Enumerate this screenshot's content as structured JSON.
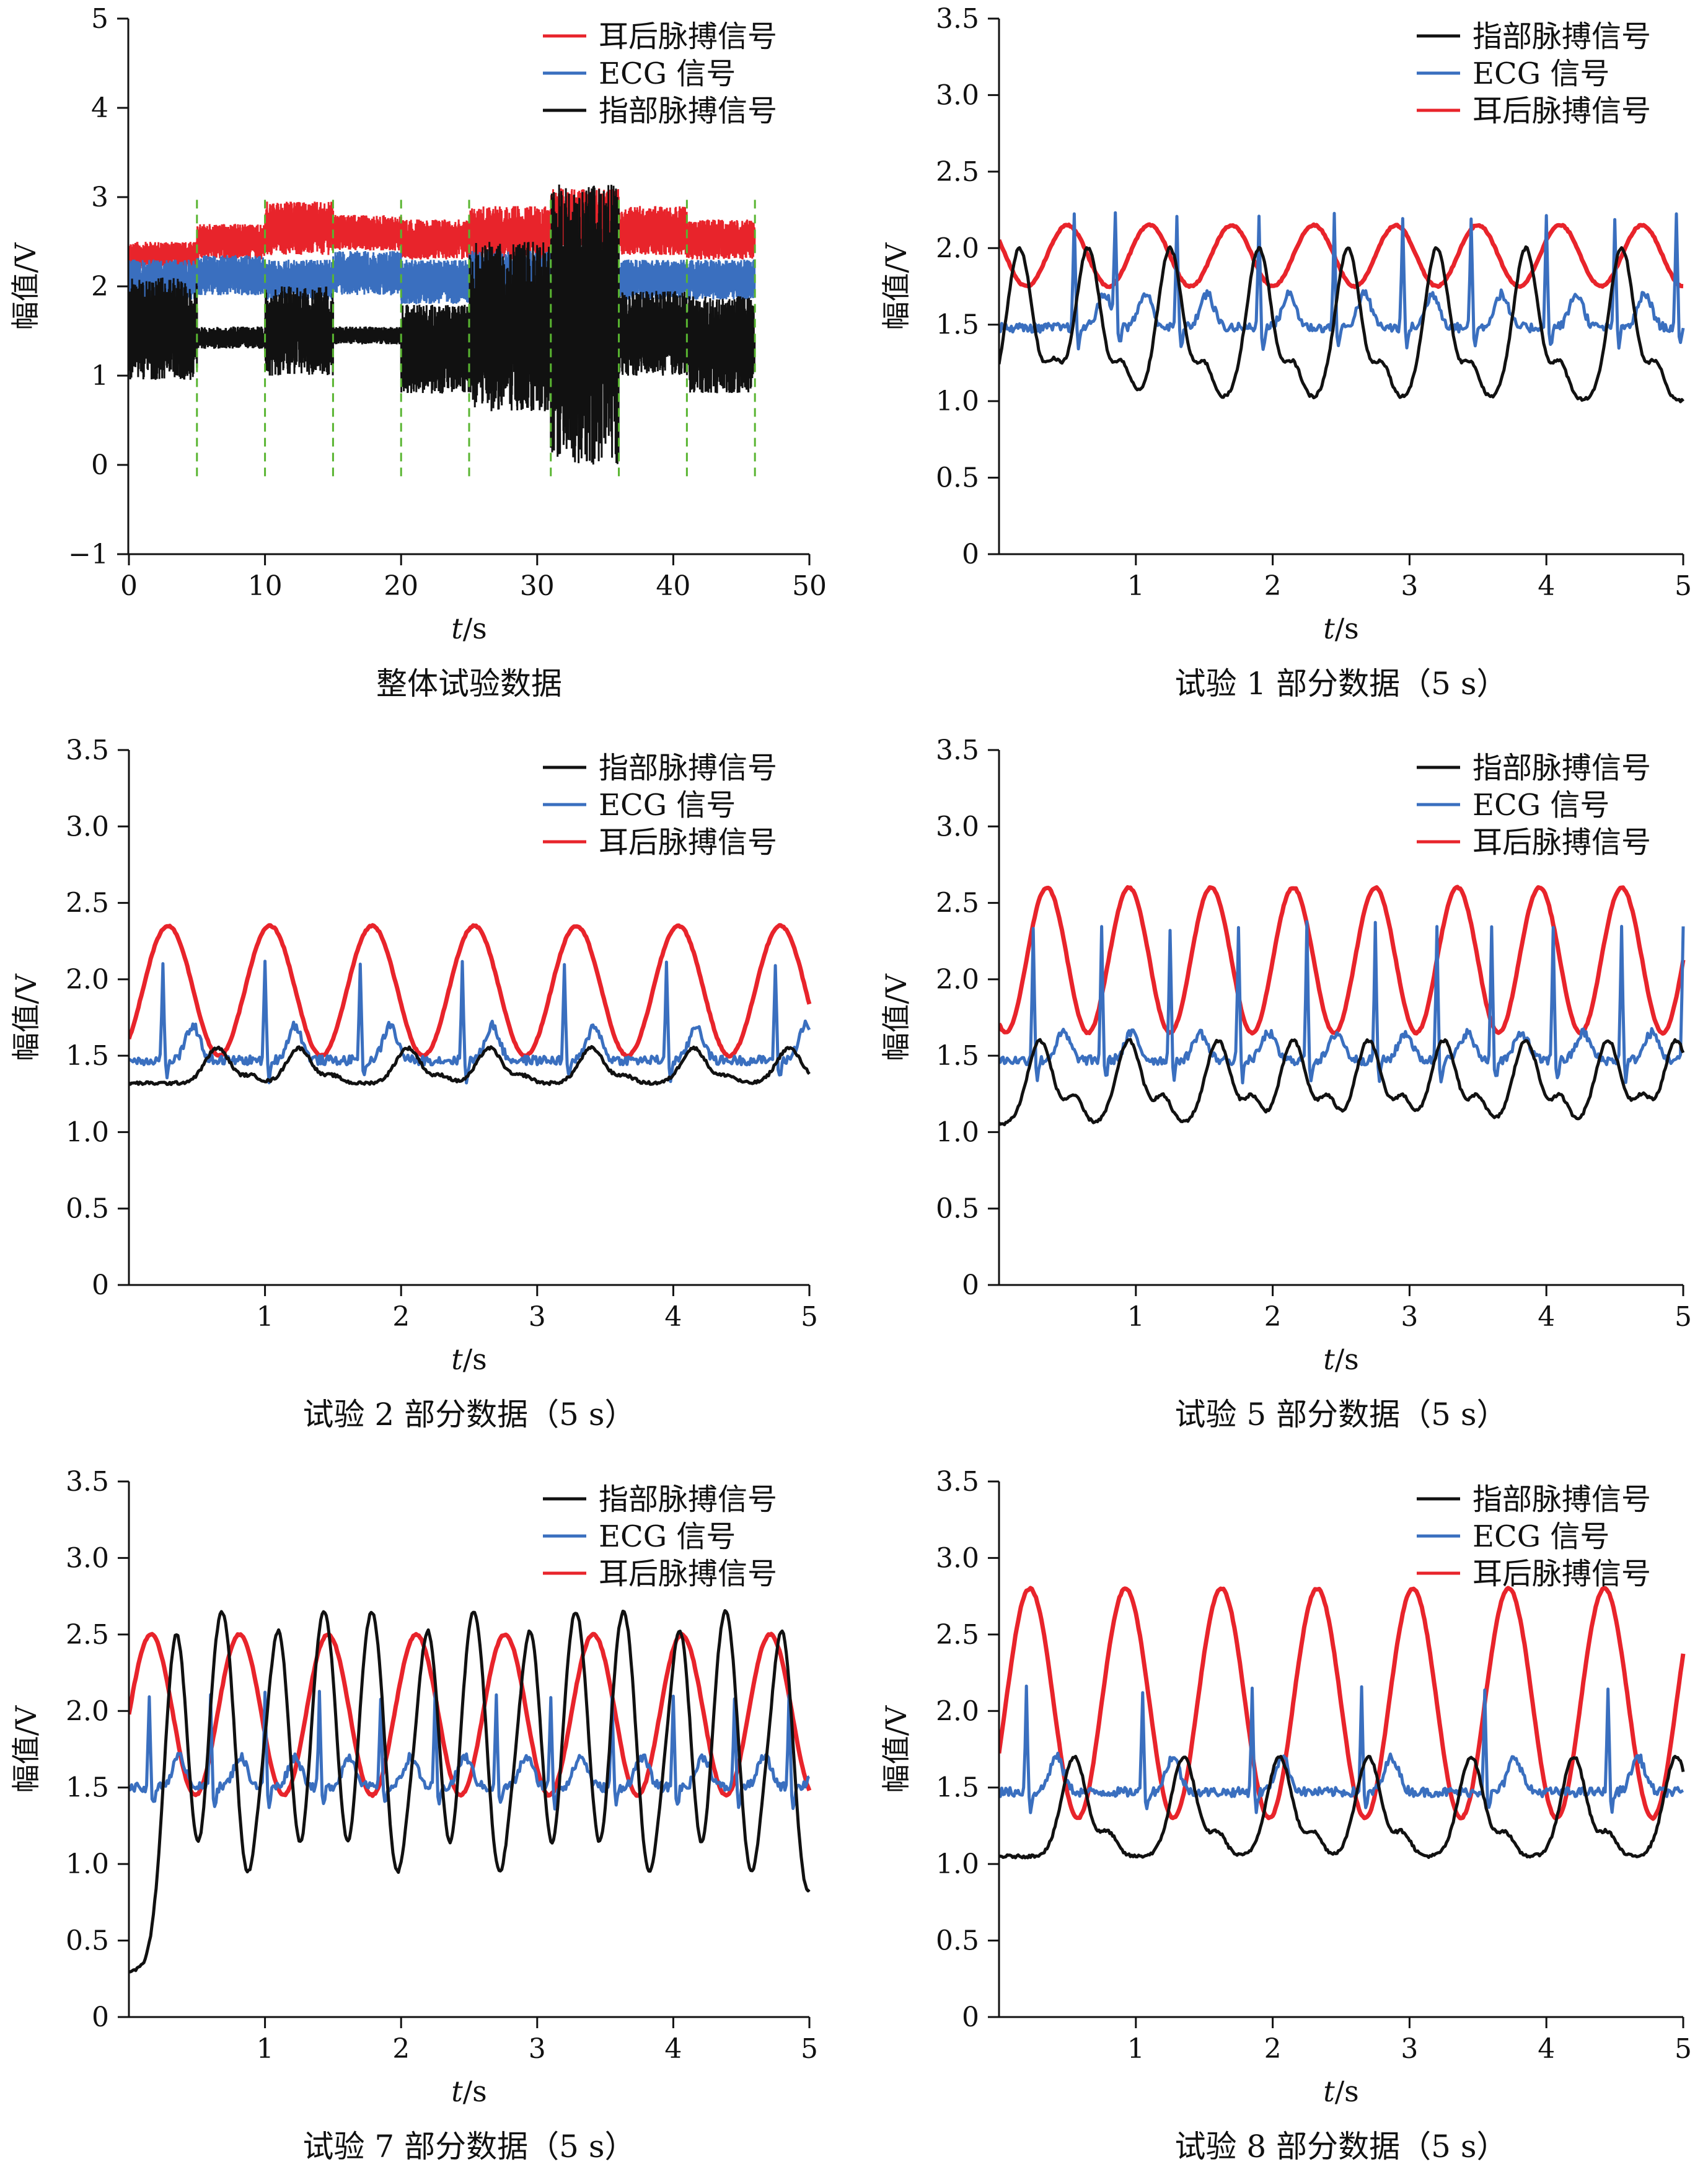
{
  "chart_data": [
    {
      "type": "line",
      "caption": "整体试验数据",
      "xlabel_italic": "t",
      "xlabel_unit": "/s",
      "ylabel": "幅值/V",
      "xlim": [
        0,
        50
      ],
      "ylim": [
        -1,
        5
      ],
      "xticks": [
        "0",
        "10",
        "20",
        "30",
        "40",
        "50"
      ],
      "yticks": [
        "−1",
        "0",
        "1",
        "2",
        "3",
        "4",
        "5"
      ],
      "legend": [
        "耳后脉搏信号",
        "ECG 信号",
        "指部脉搏信号"
      ],
      "grid": false,
      "segment_boundaries_s": [
        5,
        10,
        15,
        20,
        25,
        31,
        36,
        41,
        46
      ],
      "series": [
        {
          "name": "耳后脉搏信号",
          "color": "#e8242b",
          "bands": [
            {
              "x0": 0,
              "x1": 5,
              "low": 2.2,
              "high": 2.5
            },
            {
              "x0": 5,
              "x1": 10,
              "low": 2.3,
              "high": 2.7
            },
            {
              "x0": 10,
              "x1": 15,
              "low": 2.35,
              "high": 2.95
            },
            {
              "x0": 15,
              "x1": 20,
              "low": 2.4,
              "high": 2.8
            },
            {
              "x0": 20,
              "x1": 25,
              "low": 2.3,
              "high": 2.75
            },
            {
              "x0": 25,
              "x1": 31,
              "low": 2.3,
              "high": 2.9
            },
            {
              "x0": 31,
              "x1": 36,
              "low": 2.4,
              "high": 3.1
            },
            {
              "x0": 36,
              "x1": 41,
              "low": 2.35,
              "high": 2.9
            },
            {
              "x0": 41,
              "x1": 46,
              "low": 2.3,
              "high": 2.75
            }
          ]
        },
        {
          "name": "ECG 信号",
          "color": "#3a6fbf",
          "bands": [
            {
              "x0": 0,
              "x1": 5,
              "low": 1.85,
              "high": 2.3
            },
            {
              "x0": 5,
              "x1": 10,
              "low": 1.9,
              "high": 2.35
            },
            {
              "x0": 10,
              "x1": 15,
              "low": 1.85,
              "high": 2.3
            },
            {
              "x0": 15,
              "x1": 20,
              "low": 1.9,
              "high": 2.4
            },
            {
              "x0": 20,
              "x1": 25,
              "low": 1.8,
              "high": 2.3
            },
            {
              "x0": 25,
              "x1": 31,
              "low": 1.9,
              "high": 2.4
            },
            {
              "x0": 31,
              "x1": 36,
              "low": 1.8,
              "high": 2.4
            },
            {
              "x0": 36,
              "x1": 41,
              "low": 1.85,
              "high": 2.3
            },
            {
              "x0": 41,
              "x1": 46,
              "low": 1.85,
              "high": 2.3
            }
          ]
        },
        {
          "name": "指部脉搏信号",
          "color": "#111111",
          "bands": [
            {
              "x0": 0,
              "x1": 5,
              "low": 0.95,
              "high": 2.1
            },
            {
              "x0": 5,
              "x1": 10,
              "low": 1.3,
              "high": 1.55
            },
            {
              "x0": 10,
              "x1": 15,
              "low": 1.0,
              "high": 2.0
            },
            {
              "x0": 15,
              "x1": 20,
              "low": 1.35,
              "high": 1.55
            },
            {
              "x0": 20,
              "x1": 25,
              "low": 0.8,
              "high": 1.8
            },
            {
              "x0": 25,
              "x1": 31,
              "low": 0.6,
              "high": 2.5
            },
            {
              "x0": 31,
              "x1": 36,
              "low": 0.0,
              "high": 3.15
            },
            {
              "x0": 36,
              "x1": 41,
              "low": 1.0,
              "high": 1.95
            },
            {
              "x0": 41,
              "x1": 46,
              "low": 0.8,
              "high": 1.9
            }
          ]
        }
      ]
    },
    {
      "type": "line",
      "caption": "试验 1 部分数据（5 s）",
      "xlabel_italic": "t",
      "xlabel_unit": "/s",
      "ylabel": "幅值/V",
      "xlim": [
        0,
        5
      ],
      "ylim": [
        0,
        3.5
      ],
      "xticks": [
        "1",
        "2",
        "3",
        "4",
        "5"
      ],
      "yticks": [
        "0",
        "0.5",
        "1.0",
        "1.5",
        "2.0",
        "2.5",
        "3.0",
        "3.5"
      ],
      "legend": [
        "指部脉搏信号",
        "ECG 信号",
        "耳后脉搏信号"
      ],
      "grid": false,
      "series": [
        {
          "name": "指部脉搏信号",
          "color": "#111111",
          "shape": "finger",
          "beats": [
            0.05,
            0.55,
            1.15,
            1.8,
            2.45,
            3.1,
            3.75,
            4.45
          ],
          "base": 1.0,
          "peak": 2.0,
          "dicrotic": 1.4
        },
        {
          "name": "ECG 信号",
          "color": "#3a6fbf",
          "shape": "ecg",
          "beats": [
            0.55,
            0.85,
            1.3,
            1.9,
            2.45,
            2.95,
            3.45,
            4.0,
            4.5,
            4.95
          ],
          "base": 1.48,
          "peak": 2.2,
          "twave": 1.7
        },
        {
          "name": "耳后脉搏信号",
          "color": "#e8242b",
          "shape": "sine",
          "period": 0.6,
          "phase": 0.35,
          "low": 1.75,
          "high": 2.15
        }
      ]
    },
    {
      "type": "line",
      "caption": "试验 2 部分数据（5 s）",
      "xlabel_italic": "t",
      "xlabel_unit": "/s",
      "ylabel": "幅值/V",
      "xlim": [
        0,
        5
      ],
      "ylim": [
        0,
        3.5
      ],
      "xticks": [
        "1",
        "2",
        "3",
        "4",
        "5"
      ],
      "yticks": [
        "0",
        "0.5",
        "1.0",
        "1.5",
        "2.0",
        "2.5",
        "3.0",
        "3.5"
      ],
      "legend": [
        "指部脉搏信号",
        "ECG 信号",
        "耳后脉搏信号"
      ],
      "grid": false,
      "series": [
        {
          "name": "指部脉搏信号",
          "color": "#111111",
          "shape": "finger",
          "beats": [
            0.55,
            1.15,
            1.95,
            2.55,
            3.3,
            4.05,
            4.75
          ],
          "base": 1.32,
          "peak": 1.55,
          "dicrotic": 1.4
        },
        {
          "name": "ECG 信号",
          "color": "#3a6fbf",
          "shape": "ecg",
          "beats": [
            0.25,
            1.0,
            1.7,
            2.45,
            3.2,
            3.95,
            4.75
          ],
          "base": 1.47,
          "peak": 2.1,
          "twave": 1.7
        },
        {
          "name": "耳后脉搏信号",
          "color": "#e8242b",
          "shape": "sine",
          "period": 0.75,
          "phase": 0.1,
          "low": 1.5,
          "high": 2.35
        }
      ]
    },
    {
      "type": "line",
      "caption": "试验 5 部分数据（5 s）",
      "xlabel_italic": "t",
      "xlabel_unit": "/s",
      "ylabel": "幅值/V",
      "xlim": [
        0,
        5
      ],
      "ylim": [
        0,
        3.5
      ],
      "xticks": [
        "1",
        "2",
        "3",
        "4",
        "5"
      ],
      "yticks": [
        "0",
        "0.5",
        "1.0",
        "1.5",
        "2.0",
        "2.5",
        "3.0",
        "3.5"
      ],
      "legend": [
        "指部脉搏信号",
        "ECG 信号",
        "耳后脉搏信号"
      ],
      "grid": false,
      "series": [
        {
          "name": "指部脉搏信号",
          "color": "#111111",
          "shape": "finger",
          "beats": [
            0.2,
            0.85,
            1.5,
            2.05,
            2.6,
            3.15,
            3.75,
            4.35,
            4.85
          ],
          "base": 1.05,
          "peak": 1.6,
          "dicrotic": 1.35
        },
        {
          "name": "ECG 信号",
          "color": "#3a6fbf",
          "shape": "ecg",
          "beats": [
            0.25,
            0.75,
            1.25,
            1.75,
            2.25,
            2.75,
            3.2,
            3.6,
            4.05,
            4.55,
            5.0
          ],
          "base": 1.47,
          "peak": 2.35,
          "twave": 1.65
        },
        {
          "name": "耳后脉搏信号",
          "color": "#e8242b",
          "shape": "sine",
          "period": 0.6,
          "phase": 0.2,
          "low": 1.65,
          "high": 2.6
        }
      ]
    },
    {
      "type": "line",
      "caption": "试验 7 部分数据（5 s）",
      "xlabel_italic": "t",
      "xlabel_unit": "/s",
      "ylabel": "幅值/V",
      "xlim": [
        0,
        5
      ],
      "ylim": [
        0,
        3.5
      ],
      "xticks": [
        "1",
        "2",
        "3",
        "4",
        "5"
      ],
      "yticks": [
        "0",
        "0.5",
        "1.0",
        "1.5",
        "2.0",
        "2.5",
        "3.0",
        "3.5"
      ],
      "legend": [
        "指部脉搏信号",
        "ECG 信号",
        "耳后脉搏信号"
      ],
      "grid": false,
      "series": [
        {
          "name": "指部脉搏信号",
          "color": "#111111",
          "shape": "finger",
          "beats": [
            0.25,
            0.6,
            1.0,
            1.35,
            1.7,
            2.1,
            2.45,
            2.85,
            3.2,
            3.55,
            3.95,
            4.3,
            4.7
          ],
          "base": 0.3,
          "peak": 2.5,
          "dicrotic": 1.1
        },
        {
          "name": "ECG 信号",
          "color": "#3a6fbf",
          "shape": "ecg",
          "beats": [
            0.15,
            0.6,
            1.0,
            1.4,
            1.85,
            2.25,
            2.7,
            3.1,
            3.55,
            4.0,
            4.45,
            4.85
          ],
          "base": 1.5,
          "peak": 2.1,
          "twave": 1.7
        },
        {
          "name": "耳后脉搏信号",
          "color": "#e8242b",
          "shape": "sine",
          "period": 0.65,
          "phase": 0.0,
          "low": 1.45,
          "high": 2.5
        }
      ]
    },
    {
      "type": "line",
      "caption": "试验 8 部分数据（5 s）",
      "xlabel_italic": "t",
      "xlabel_unit": "/s",
      "ylabel": "幅值/V",
      "xlim": [
        0,
        5
      ],
      "ylim": [
        0,
        3.5
      ],
      "xticks": [
        "1",
        "2",
        "3",
        "4",
        "5"
      ],
      "yticks": [
        "0",
        "0.5",
        "1.0",
        "1.5",
        "2.0",
        "2.5",
        "3.0",
        "3.5"
      ],
      "legend": [
        "指部脉搏信号",
        "ECG 信号",
        "耳后脉搏信号"
      ],
      "grid": false,
      "series": [
        {
          "name": "指部脉搏信号",
          "color": "#111111",
          "shape": "finger",
          "beats": [
            0.45,
            1.25,
            1.95,
            2.6,
            3.35,
            4.1,
            4.85
          ],
          "base": 1.05,
          "peak": 1.7,
          "dicrotic": 1.3
        },
        {
          "name": "ECG 信号",
          "color": "#3a6fbf",
          "shape": "ecg",
          "beats": [
            0.2,
            1.05,
            1.85,
            2.65,
            3.55,
            4.45
          ],
          "base": 1.47,
          "peak": 2.15,
          "twave": 1.7
        },
        {
          "name": "耳后脉搏信号",
          "color": "#e8242b",
          "shape": "sine",
          "period": 0.7,
          "phase": 0.05,
          "low": 1.3,
          "high": 2.8
        }
      ]
    }
  ]
}
